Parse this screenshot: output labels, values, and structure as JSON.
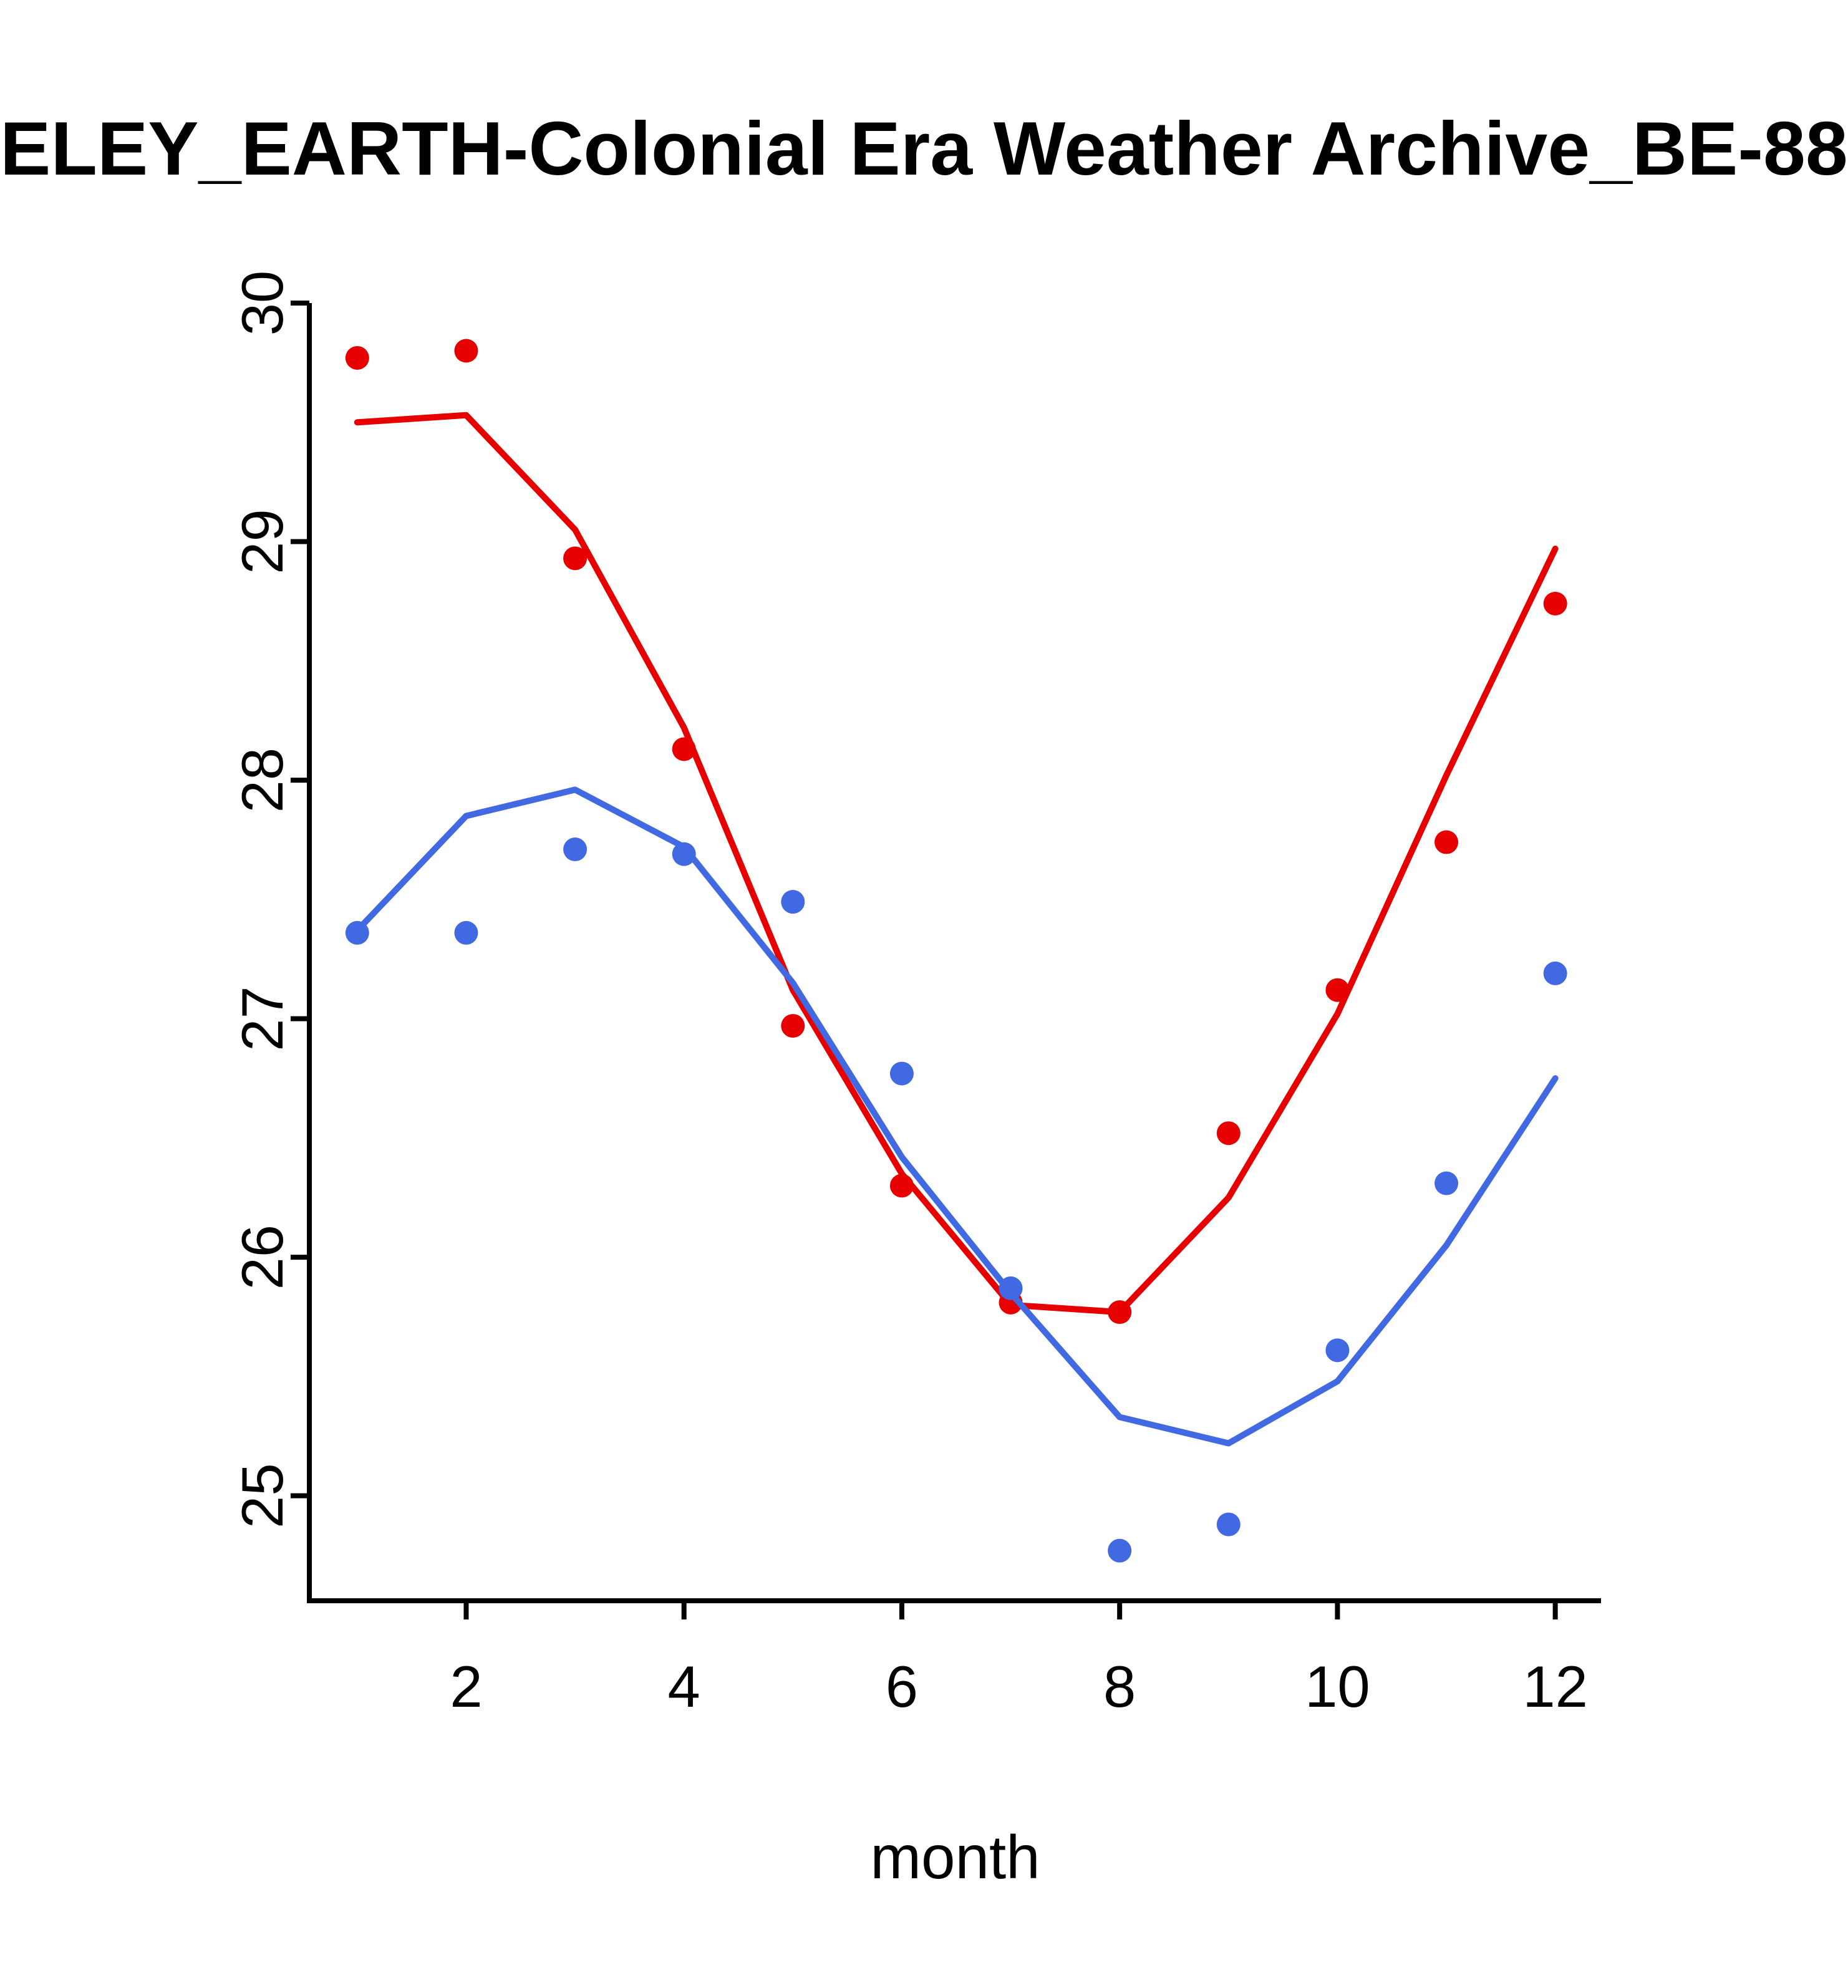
{
  "page": {
    "background": "#ffffff"
  },
  "chart_data": {
    "type": "scatter",
    "title": "ELEY_EARTH-Colonial Era Weather Archive_BE-88",
    "xlabel": "month",
    "ylabel": "",
    "xlim": [
      0.56,
      12.42
    ],
    "ylim": [
      24.56,
      30.0
    ],
    "x_ticks": [
      2,
      4,
      6,
      8,
      10,
      12
    ],
    "y_ticks": [
      25,
      26,
      27,
      28,
      29,
      30
    ],
    "grid": false,
    "legend_position": "none",
    "axis_color": "#000000",
    "x": [
      1,
      2,
      3,
      4,
      5,
      6,
      7,
      8,
      9,
      10,
      11,
      12
    ],
    "series": [
      {
        "name": "red-series",
        "color": "#e60000",
        "marker": "circle",
        "points": [
          29.77,
          29.8,
          28.93,
          28.13,
          26.97,
          26.3,
          25.81,
          25.77,
          26.52,
          27.12,
          27.74,
          28.74
        ],
        "trend_line": [
          29.5,
          29.53,
          29.05,
          28.22,
          27.12,
          26.35,
          25.8,
          25.77,
          26.25,
          27.02,
          28.02,
          28.97
        ]
      },
      {
        "name": "blue-series",
        "color": "#4169e1",
        "marker": "circle",
        "points": [
          27.36,
          27.36,
          27.71,
          27.69,
          27.49,
          26.77,
          25.87,
          24.77,
          24.88,
          25.61,
          26.31,
          27.19
        ],
        "trend_line": [
          27.37,
          27.85,
          27.96,
          27.72,
          27.15,
          26.42,
          25.85,
          25.33,
          25.22,
          25.48,
          26.05,
          26.75
        ]
      }
    ]
  }
}
